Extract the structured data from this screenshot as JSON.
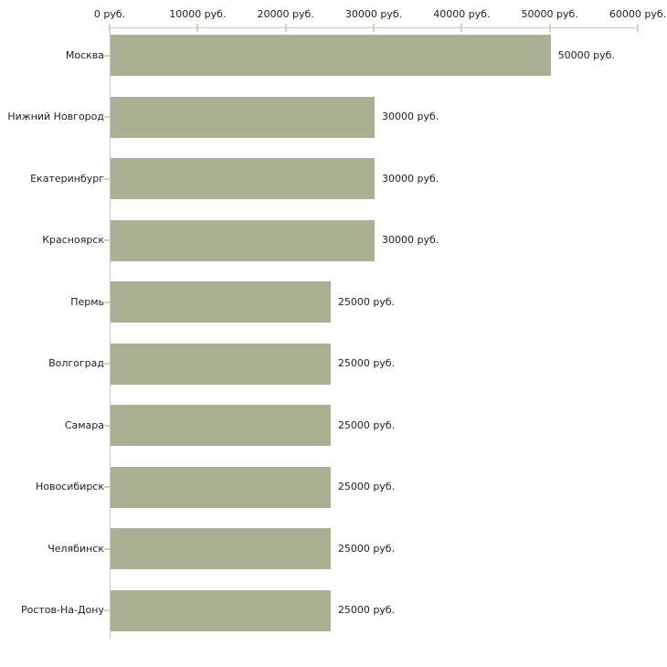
{
  "chart_data": {
    "type": "bar",
    "orientation": "horizontal",
    "title": "",
    "categories": [
      "Москва",
      "Нижний Новгород",
      "Екатеринбург",
      "Красноярск",
      "Пермь",
      "Волгоград",
      "Самара",
      "Новосибирск",
      "Челябинск",
      "Ростов-На-Дону"
    ],
    "values": [
      50000,
      30000,
      30000,
      30000,
      25000,
      25000,
      25000,
      25000,
      25000,
      25000
    ],
    "value_labels": [
      "50000 руб.",
      "30000 руб.",
      "30000 руб.",
      "30000 руб.",
      "25000 руб.",
      "25000 руб.",
      "25000 руб.",
      "25000 руб.",
      "25000 руб.",
      "25000 руб."
    ],
    "x_ticks": [
      {
        "value": 0,
        "label": "0 руб."
      },
      {
        "value": 10000,
        "label": "10000 руб."
      },
      {
        "value": 20000,
        "label": "20000 руб."
      },
      {
        "value": 30000,
        "label": "30000 руб."
      },
      {
        "value": 40000,
        "label": "40000 руб."
      },
      {
        "value": 50000,
        "label": "50000 руб."
      },
      {
        "value": 60000,
        "label": "60000 руб."
      }
    ],
    "xlim": [
      0,
      60000
    ],
    "unit": "руб.",
    "xlabel": "",
    "ylabel": "",
    "grid": false,
    "legend": "none",
    "colors": {
      "bar": "#aab093",
      "axis_line": "#c6c6c6",
      "tick_mark": "#d8d3ae",
      "text": "#1f1f1f",
      "background": "#ffffff"
    }
  }
}
